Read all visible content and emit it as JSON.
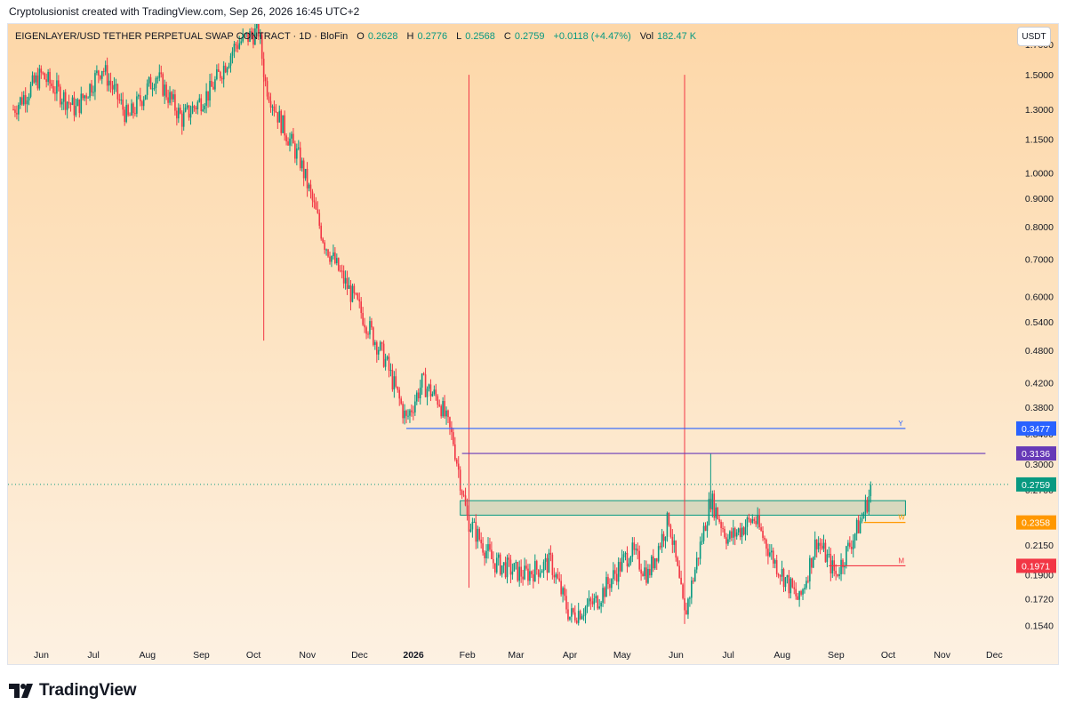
{
  "caption": "Cryptolusionist created with TradingView.com, Sep 26, 2026 16:45 UTC+2",
  "header": {
    "symbol": "EIGENLAYER/USD TETHER PERPETUAL SWAP CONTRACT · 1D · BloFin",
    "open_label": "O",
    "open": "0.2628",
    "high_label": "H",
    "high": "0.2776",
    "low_label": "L",
    "low": "0.2568",
    "close_label": "C",
    "close": "0.2759",
    "change": "+0.0118 (+4.47%)",
    "vol_label": "Vol",
    "vol": "182.47 K",
    "currency": "USDT"
  },
  "brand": {
    "name": "TradingView"
  },
  "colors": {
    "up": "#089981",
    "down": "#f23645",
    "bg_top": "#fdd7a8",
    "bg_bottom": "#fdf1e2",
    "yearly": "#2962ff",
    "quarterly": "#673ab7",
    "weekly": "#ff9800",
    "monthly": "#f23645",
    "zone_fill": "#c5ceb2",
    "zone_border": "#089981"
  },
  "chart_data": {
    "type": "candlestick",
    "title": "EIGENLAYER/USD TETHER PERPETUAL SWAP CONTRACT · 1D · BloFin",
    "x_labels": [
      "Jun",
      "Jul",
      "Aug",
      "Sep",
      "Oct",
      "Nov",
      "Dec",
      "2026",
      "Feb",
      "Mar",
      "Apr",
      "May",
      "Jun",
      "Jul",
      "Aug",
      "Sep",
      "Oct",
      "Nov",
      "Dec"
    ],
    "y_ticks": [
      "1.7000",
      "1.5000",
      "1.3000",
      "1.1500",
      "1.0000",
      "0.9000",
      "0.8000",
      "0.7000",
      "0.6000",
      "0.5400",
      "0.4800",
      "0.4200",
      "0.3800",
      "0.3400",
      "0.3000",
      "0.2700",
      "0.2400",
      "0.2150",
      "0.1900",
      "0.1720",
      "0.1540"
    ],
    "y_scale": "log",
    "ylim": [
      0.145,
      1.85
    ],
    "price_trajectory": [
      {
        "date": "2025-05-20",
        "price": 1.3
      },
      {
        "date": "2025-06-05",
        "price": 1.5
      },
      {
        "date": "2025-06-25",
        "price": 1.3
      },
      {
        "date": "2025-07-10",
        "price": 1.55
      },
      {
        "date": "2025-07-25",
        "price": 1.25
      },
      {
        "date": "2025-08-10",
        "price": 1.5
      },
      {
        "date": "2025-08-25",
        "price": 1.25
      },
      {
        "date": "2025-09-10",
        "price": 1.4
      },
      {
        "date": "2025-09-25",
        "price": 1.7
      },
      {
        "date": "2025-10-08",
        "price": 1.8
      },
      {
        "date": "2025-10-12",
        "price": 1.45
      },
      {
        "date": "2025-10-20",
        "price": 1.25
      },
      {
        "date": "2025-11-01",
        "price": 1.05
      },
      {
        "date": "2025-11-15",
        "price": 0.75
      },
      {
        "date": "2025-11-25",
        "price": 0.65
      },
      {
        "date": "2025-12-05",
        "price": 0.57
      },
      {
        "date": "2025-12-20",
        "price": 0.46
      },
      {
        "date": "2026-01-01",
        "price": 0.36
      },
      {
        "date": "2026-01-10",
        "price": 0.42
      },
      {
        "date": "2026-01-20",
        "price": 0.39
      },
      {
        "date": "2026-01-28",
        "price": 0.33
      },
      {
        "date": "2026-02-05",
        "price": 0.24
      },
      {
        "date": "2026-02-20",
        "price": 0.2
      },
      {
        "date": "2026-03-10",
        "price": 0.19
      },
      {
        "date": "2026-03-25",
        "price": 0.2
      },
      {
        "date": "2026-04-05",
        "price": 0.16
      },
      {
        "date": "2026-04-20",
        "price": 0.17
      },
      {
        "date": "2026-05-10",
        "price": 0.21
      },
      {
        "date": "2026-05-20",
        "price": 0.19
      },
      {
        "date": "2026-06-01",
        "price": 0.24
      },
      {
        "date": "2026-06-10",
        "price": 0.16
      },
      {
        "date": "2026-06-25",
        "price": 0.26
      },
      {
        "date": "2026-07-05",
        "price": 0.22
      },
      {
        "date": "2026-07-20",
        "price": 0.24
      },
      {
        "date": "2026-08-01",
        "price": 0.2
      },
      {
        "date": "2026-08-15",
        "price": 0.17
      },
      {
        "date": "2026-08-25",
        "price": 0.22
      },
      {
        "date": "2026-09-05",
        "price": 0.19
      },
      {
        "date": "2026-09-20",
        "price": 0.24
      },
      {
        "date": "2026-09-26",
        "price": 0.2759
      }
    ],
    "wick_spikes": [
      {
        "date": "2025-10-11",
        "price_low": 0.5
      },
      {
        "date": "2026-06-25",
        "price_high": 0.3136
      },
      {
        "date": "2026-06-10",
        "price_low": 0.155
      },
      {
        "date": "2026-02-06",
        "price_low": 0.18
      }
    ],
    "support_zone": {
      "from": "2026-02-01",
      "to": "2026-10-15",
      "low": 0.243,
      "high": 0.258
    },
    "levels": [
      {
        "label": "Y",
        "value": "0.3477",
        "price": 0.3477,
        "from": "2026-01-01",
        "to": "2026-10-15",
        "color": "#2962ff"
      },
      {
        "label": "",
        "value": "0.3136",
        "price": 0.3136,
        "from": "2026-02-02",
        "to": "2026-11-30",
        "color": "#673ab7"
      },
      {
        "label": "W",
        "value": "0.2358",
        "price": 0.2358,
        "from": "2026-09-21",
        "to": "2026-10-15",
        "color": "#ff9800"
      },
      {
        "label": "M",
        "value": "0.1971",
        "price": 0.1971,
        "from": "2026-09-01",
        "to": "2026-10-15",
        "color": "#f23645"
      }
    ],
    "last_price": {
      "value": "0.2759",
      "price": 0.2759,
      "color": "#089981"
    },
    "grid": false
  }
}
